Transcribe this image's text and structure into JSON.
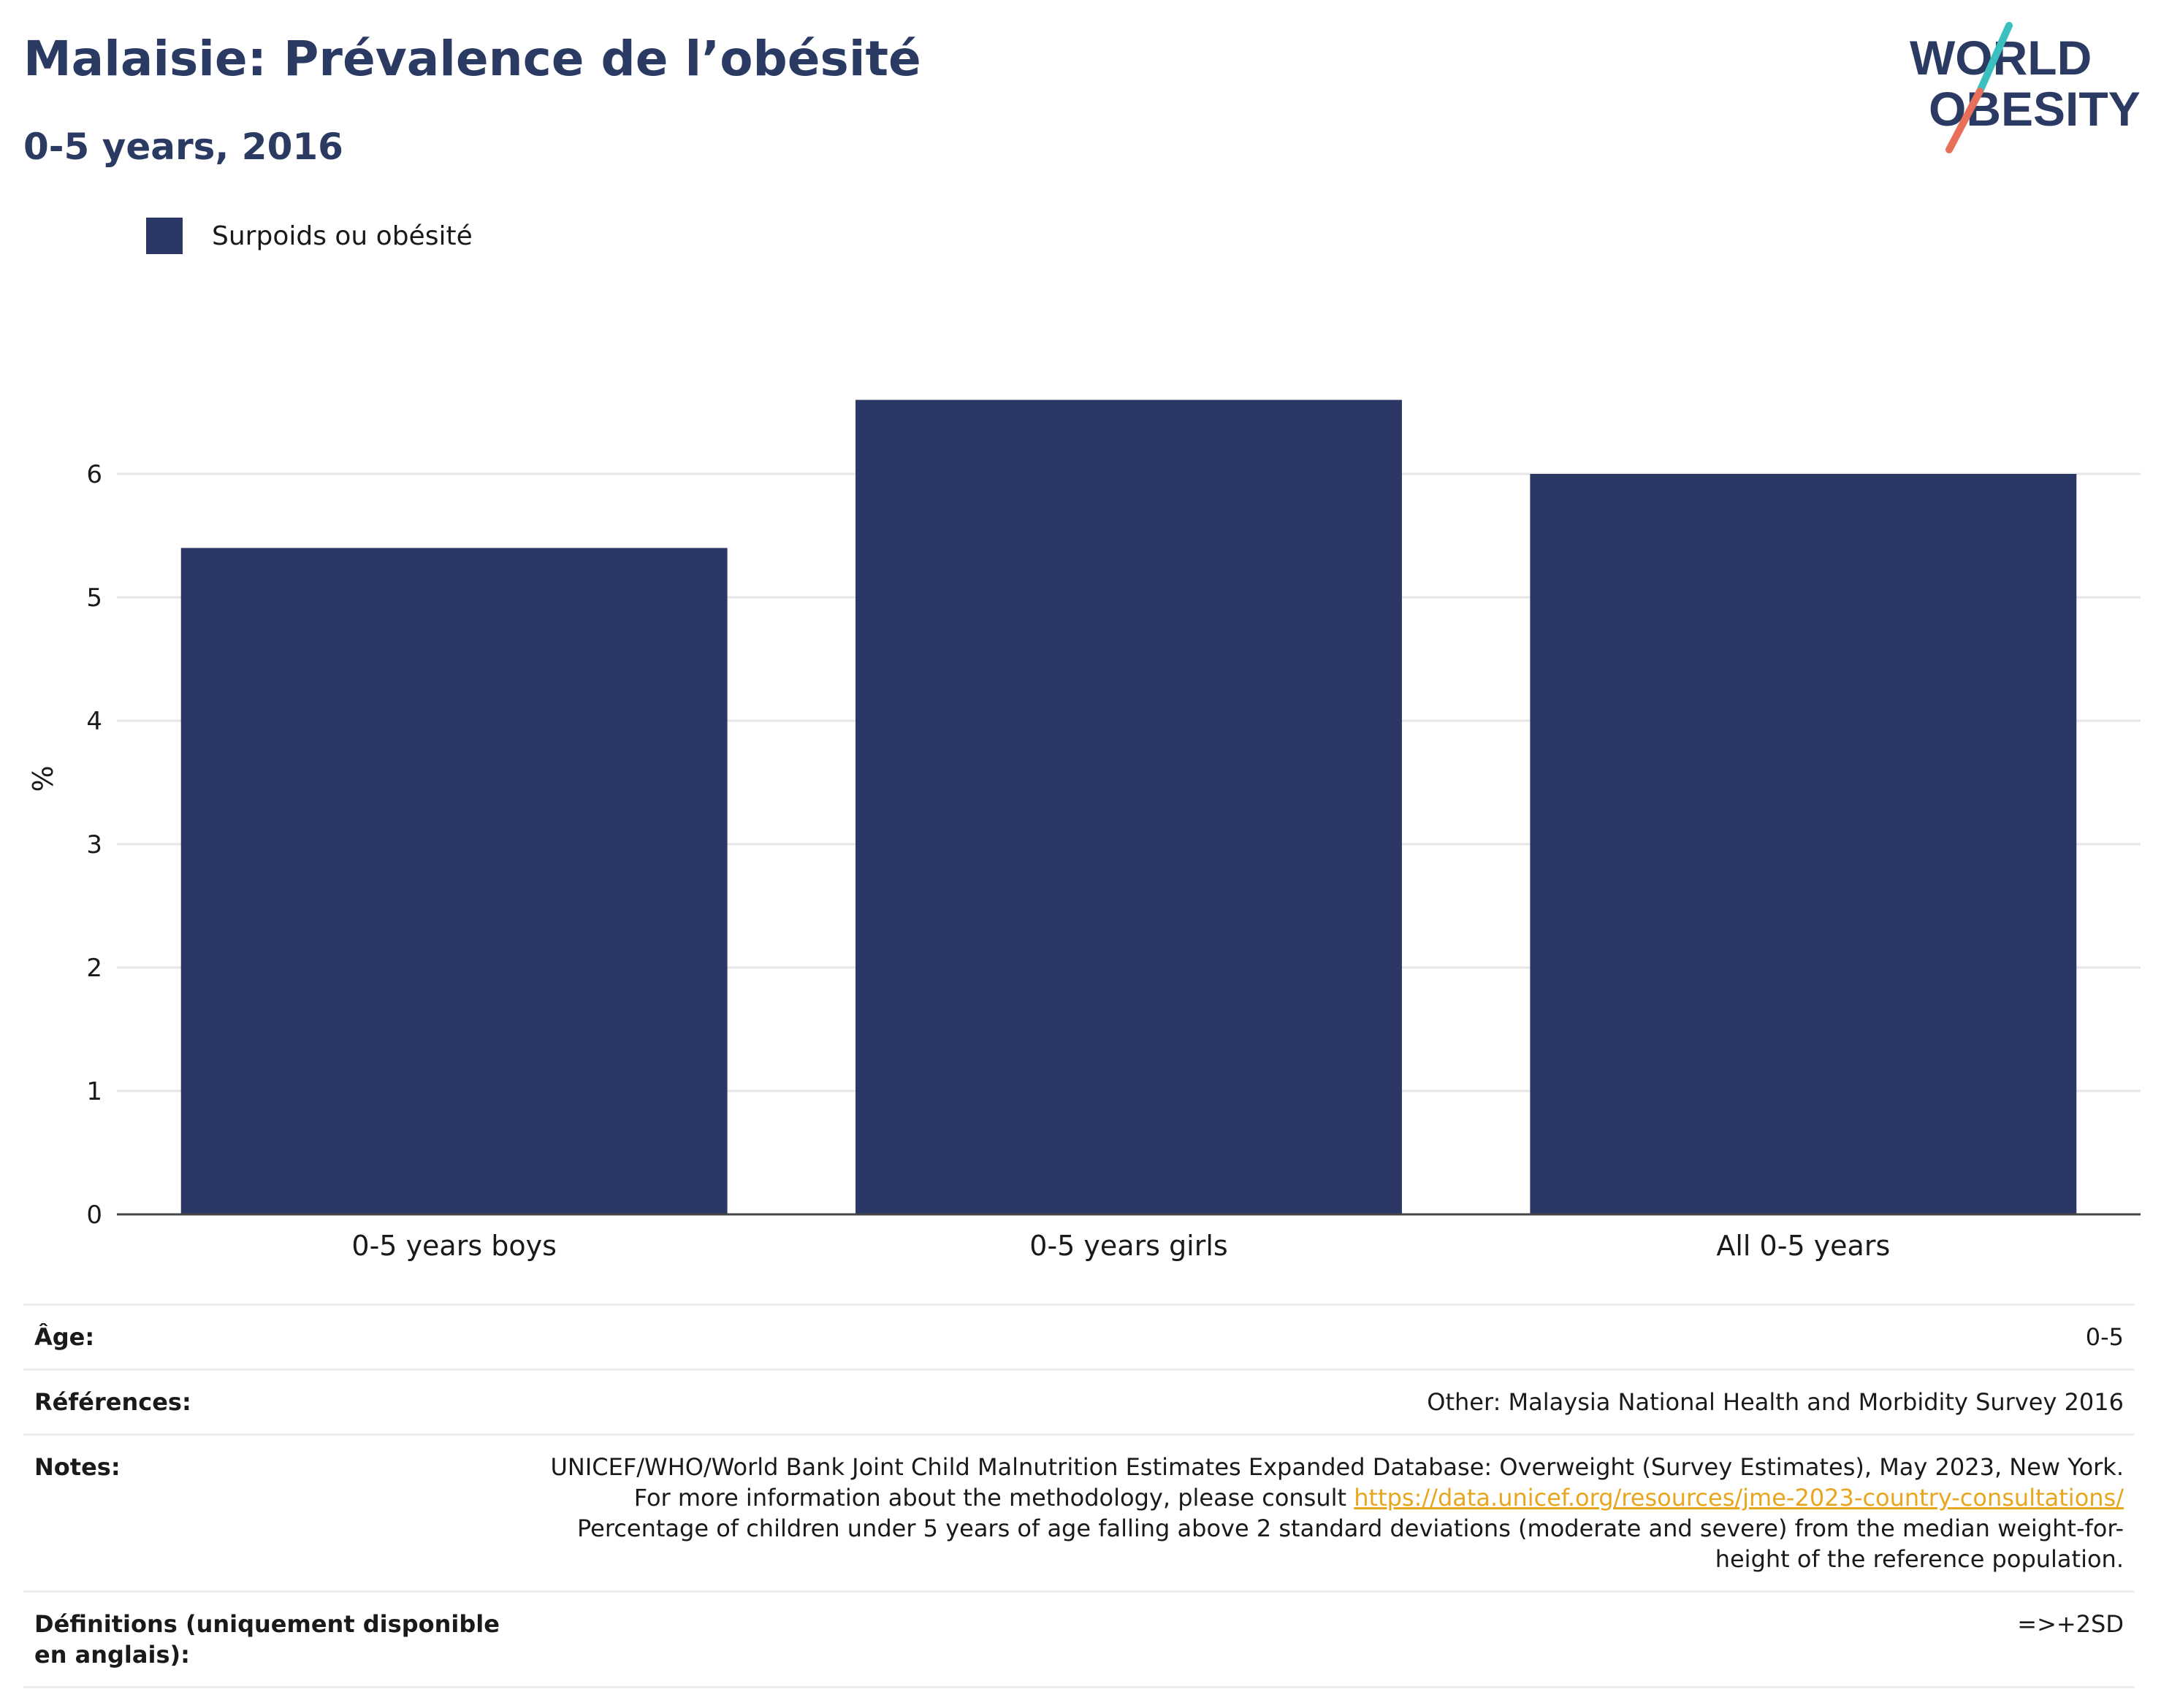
{
  "title": "Malaisie: Prévalence de l’obésité",
  "subtitle": "0-5 years, 2016",
  "logo": {
    "line1": "WORLD",
    "line2": "OBESITY"
  },
  "colors": {
    "bar": "#2b3764",
    "title": "#2b3a63",
    "logo_teal": "#3bbfbf",
    "logo_red": "#e8705a",
    "link": "#e8a61e"
  },
  "chart_data": {
    "type": "bar",
    "categories": [
      "0-5 years boys",
      "0-5 years girls",
      "All 0-5 years"
    ],
    "series": [
      {
        "name": "Surpoids ou obésité",
        "values": [
          5.4,
          6.6,
          6.0
        ]
      }
    ],
    "ylabel": "%",
    "yticks": [
      0,
      1,
      2,
      3,
      4,
      5,
      6
    ],
    "ylim": [
      0,
      7
    ],
    "grid": true,
    "legend": "top-left"
  },
  "info": {
    "age_label": "Âge:",
    "age_value": "0-5",
    "refs_label": "Références:",
    "refs_value": "Other: Malaysia National Health and Morbidity Survey 2016",
    "notes_label": "Notes:",
    "notes_text_1": "UNICEF/WHO/World Bank Joint Child Malnutrition Estimates Expanded Database: Overweight (Survey Estimates), May 2023, New York. For more information about the methodology, please consult ",
    "notes_link": "https://data.unicef.org/resources/jme-2023-country-consultations/",
    "notes_text_2": "Percentage of children under 5 years of age falling above 2 standard deviations (moderate and severe) from the median weight-for-height of the reference population.",
    "defs_label": "Définitions (uniquement disponible en anglais):",
    "defs_value": "=>+2SD"
  }
}
